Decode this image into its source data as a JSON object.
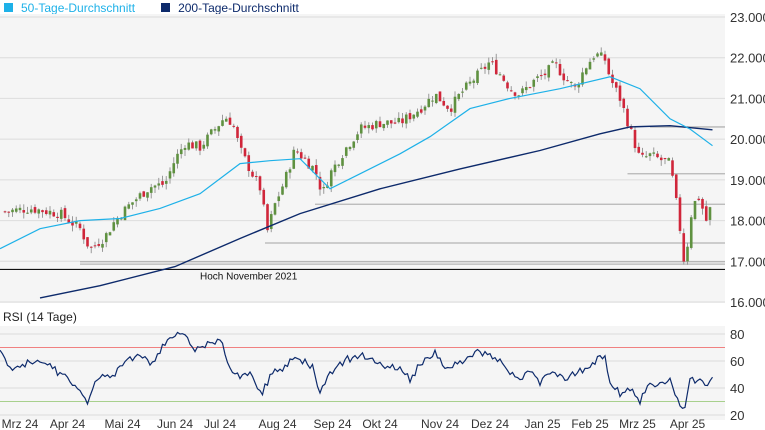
{
  "chart_data": [
    {
      "type": "candlestick",
      "title": "",
      "legend": [
        {
          "label": "50-Tage-Durchschnitt",
          "color": "#1eb1e8"
        },
        {
          "label": "200-Tage-Durchschnitt",
          "color": "#0d2a6b"
        }
      ],
      "legend_placement": "top-left",
      "x_unit": "trading day",
      "xlim": [
        0,
        290
      ],
      "ylim": [
        16000,
        23000
      ],
      "y_ticks": [
        "16.000",
        "17.000",
        "18.000",
        "19.000",
        "20.000",
        "21.000",
        "22.000",
        "23.000"
      ],
      "y_tick_values": [
        16000,
        17000,
        18000,
        19000,
        20000,
        21000,
        22000,
        23000
      ],
      "x_ticks": [
        {
          "t": 8,
          "label": "Mrz 24"
        },
        {
          "t": 27,
          "label": "Apr 24"
        },
        {
          "t": 49,
          "label": "Mai 24"
        },
        {
          "t": 70,
          "label": "Jun 24"
        },
        {
          "t": 88,
          "label": "Jul 24"
        },
        {
          "t": 111,
          "label": "Aug 24"
        },
        {
          "t": 133,
          "label": "Sep 24"
        },
        {
          "t": 152,
          "label": "Okt 24"
        },
        {
          "t": 176,
          "label": "Nov 24"
        },
        {
          "t": 196,
          "label": "Dez 24"
        },
        {
          "t": 217,
          "label": "Jan 25"
        },
        {
          "t": 236,
          "label": "Feb 25"
        },
        {
          "t": 255,
          "label": "Mrz 25"
        },
        {
          "t": 275,
          "label": "Apr 25"
        }
      ],
      "close": [
        [
          2,
          18220
        ],
        [
          12,
          18300
        ],
        [
          24,
          18170
        ],
        [
          32,
          17800
        ],
        [
          36,
          17300
        ],
        [
          42,
          17600
        ],
        [
          46,
          18000
        ],
        [
          52,
          18400
        ],
        [
          60,
          18830
        ],
        [
          66,
          18900
        ],
        [
          70,
          19500
        ],
        [
          74,
          19900
        ],
        [
          80,
          19800
        ],
        [
          86,
          20250
        ],
        [
          90,
          20550
        ],
        [
          93,
          20400
        ],
        [
          96,
          19750
        ],
        [
          100,
          19250
        ],
        [
          104,
          18800
        ],
        [
          107,
          17750
        ],
        [
          110,
          18400
        ],
        [
          114,
          19000
        ],
        [
          118,
          19750
        ],
        [
          122,
          19500
        ],
        [
          126,
          19250
        ],
        [
          129,
          18650
        ],
        [
          132,
          19150
        ],
        [
          138,
          19750
        ],
        [
          144,
          20250
        ],
        [
          152,
          20400
        ],
        [
          160,
          20400
        ],
        [
          168,
          20750
        ],
        [
          174,
          21100
        ],
        [
          180,
          20750
        ],
        [
          184,
          21100
        ],
        [
          190,
          21500
        ],
        [
          196,
          21900
        ],
        [
          200,
          21600
        ],
        [
          204,
          21250
        ],
        [
          208,
          21100
        ],
        [
          214,
          21450
        ],
        [
          218,
          21600
        ],
        [
          222,
          21850
        ],
        [
          226,
          21500
        ],
        [
          230,
          21250
        ],
        [
          234,
          21750
        ],
        [
          238,
          22100
        ],
        [
          242,
          21950
        ],
        [
          244,
          21500
        ],
        [
          248,
          21000
        ],
        [
          252,
          20250
        ],
        [
          256,
          19500
        ],
        [
          260,
          19600
        ],
        [
          264,
          19500
        ],
        [
          268,
          19400
        ],
        [
          270,
          18650
        ],
        [
          272,
          17800
        ],
        [
          274,
          16800
        ],
        [
          276,
          18050
        ],
        [
          279,
          18650
        ],
        [
          281,
          18300
        ],
        [
          283,
          17900
        ],
        [
          285,
          18650
        ]
      ],
      "ma50": [
        [
          0,
          17310
        ],
        [
          16,
          17800
        ],
        [
          32,
          18000
        ],
        [
          48,
          18050
        ],
        [
          64,
          18300
        ],
        [
          80,
          18660
        ],
        [
          96,
          19400
        ],
        [
          108,
          19470
        ],
        [
          120,
          19520
        ],
        [
          132,
          18780
        ],
        [
          144,
          19150
        ],
        [
          160,
          19640
        ],
        [
          172,
          20060
        ],
        [
          188,
          20750
        ],
        [
          204,
          21000
        ],
        [
          224,
          21240
        ],
        [
          244,
          21530
        ],
        [
          256,
          21240
        ],
        [
          268,
          20500
        ],
        [
          276,
          20250
        ],
        [
          285,
          19840
        ]
      ],
      "ma200": [
        [
          16,
          16100
        ],
        [
          40,
          16400
        ],
        [
          70,
          16870
        ],
        [
          96,
          17560
        ],
        [
          120,
          18170
        ],
        [
          152,
          18780
        ],
        [
          184,
          19270
        ],
        [
          216,
          19720
        ],
        [
          240,
          20130
        ],
        [
          252,
          20300
        ],
        [
          268,
          20330
        ],
        [
          285,
          20230
        ]
      ],
      "support_lines": [
        {
          "value": 20300,
          "from": 260
        },
        {
          "value": 19150,
          "from": 251
        },
        {
          "value": 18400,
          "from": 126
        },
        {
          "value": 17450,
          "from": 106
        },
        {
          "value": 16990,
          "from": 32
        },
        {
          "value": 16930,
          "from": 32
        }
      ],
      "annotation": {
        "value": 16800,
        "label": "Hoch November 2021"
      }
    },
    {
      "type": "line",
      "title": "RSI (14 Tage)",
      "ylim": [
        20,
        85
      ],
      "y_ticks": [
        "20",
        "40",
        "60",
        "80"
      ],
      "y_tick_values": [
        20,
        40,
        60,
        80
      ],
      "overbought": 70,
      "oversold": 30,
      "series": [
        {
          "name": "RSI",
          "color": "#0d2a6b",
          "points": [
            [
              0,
              68
            ],
            [
              4,
              53
            ],
            [
              8,
              57
            ],
            [
              16,
              61
            ],
            [
              22,
              53
            ],
            [
              26,
              50
            ],
            [
              30,
              42
            ],
            [
              35,
              30
            ],
            [
              40,
              50
            ],
            [
              44,
              47
            ],
            [
              50,
              61
            ],
            [
              56,
              64
            ],
            [
              60,
              57
            ],
            [
              64,
              68
            ],
            [
              70,
              79
            ],
            [
              74,
              81
            ],
            [
              78,
              67
            ],
            [
              82,
              72
            ],
            [
              88,
              77
            ],
            [
              92,
              53
            ],
            [
              96,
              47
            ],
            [
              100,
              50
            ],
            [
              105,
              35
            ],
            [
              108,
              50
            ],
            [
              112,
              53
            ],
            [
              116,
              61
            ],
            [
              120,
              61
            ],
            [
              125,
              55
            ],
            [
              128,
              38
            ],
            [
              132,
              52
            ],
            [
              138,
              61
            ],
            [
              144,
              64
            ],
            [
              152,
              57
            ],
            [
              160,
              53
            ],
            [
              164,
              47
            ],
            [
              168,
              57
            ],
            [
              174,
              68
            ],
            [
              178,
              53
            ],
            [
              182,
              57
            ],
            [
              188,
              62
            ],
            [
              192,
              67
            ],
            [
              196,
              64
            ],
            [
              200,
              61
            ],
            [
              204,
              50
            ],
            [
              208,
              47
            ],
            [
              212,
              55
            ],
            [
              216,
              42
            ],
            [
              220,
              53
            ],
            [
              226,
              48
            ],
            [
              232,
              52
            ],
            [
              236,
              57
            ],
            [
              240,
              64
            ],
            [
              242,
              62
            ],
            [
              244,
              42
            ],
            [
              248,
              36
            ],
            [
              252,
              38
            ],
            [
              256,
              31
            ],
            [
              260,
              42
            ],
            [
              264,
              44
            ],
            [
              268,
              45
            ],
            [
              270,
              35
            ],
            [
              273,
              25
            ],
            [
              274,
              24
            ],
            [
              276,
              47
            ],
            [
              280,
              45
            ],
            [
              282,
              42
            ],
            [
              285,
              48
            ]
          ]
        }
      ]
    }
  ]
}
